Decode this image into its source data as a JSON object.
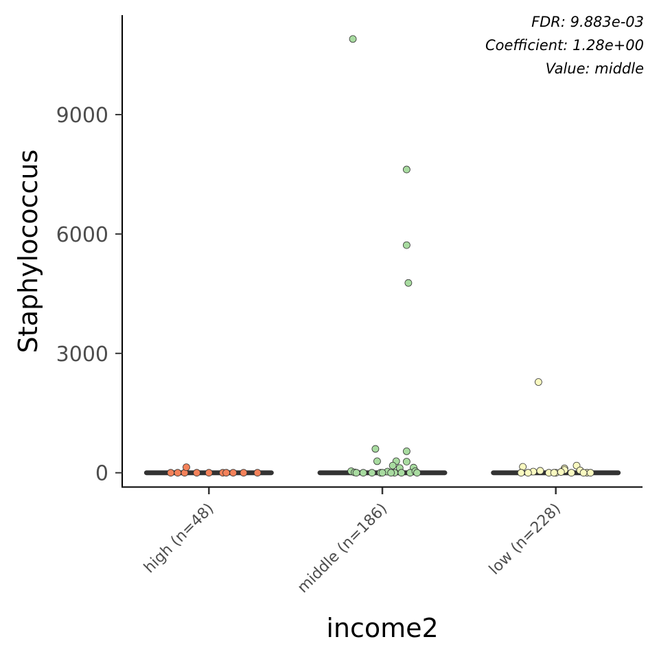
{
  "chart_data": {
    "type": "scatter",
    "xlabel": "income2",
    "ylabel": "Staphylococcus",
    "ylim": [
      -350,
      11500
    ],
    "y_ticks": [
      0,
      3000,
      6000,
      9000
    ],
    "y_tick_labels": [
      "0",
      "3000",
      "6000",
      "9000"
    ],
    "categories": [
      "high (n=48)",
      "middle (n=186)",
      "low (n=228)"
    ],
    "annotations": [
      "FDR: 9.883e-03",
      "Coefficient: 1.28e+00",
      "Value: middle"
    ],
    "legend": "none",
    "grid": false,
    "series": [
      {
        "category": "high (n=48)",
        "color": "#f4825a",
        "median": 0,
        "points": [
          {
            "x": -0.22,
            "y": 0
          },
          {
            "x": -0.14,
            "y": 0
          },
          {
            "x": -0.07,
            "y": 0
          },
          {
            "x": 0.0,
            "y": 0
          },
          {
            "x": 0.08,
            "y": 0
          },
          {
            "x": 0.14,
            "y": 0
          },
          {
            "x": 0.2,
            "y": 0
          },
          {
            "x": 0.28,
            "y": 0
          },
          {
            "x": -0.18,
            "y": 0
          },
          {
            "x": 0.1,
            "y": 0
          },
          {
            "x": -0.13,
            "y": 140
          }
        ]
      },
      {
        "category": "middle (n=186)",
        "color": "#a8dba0",
        "median": 0,
        "points": [
          {
            "x": -0.17,
            "y": 10900
          },
          {
            "x": 0.14,
            "y": 7620
          },
          {
            "x": 0.14,
            "y": 5720
          },
          {
            "x": 0.15,
            "y": 4770
          },
          {
            "x": -0.04,
            "y": 600
          },
          {
            "x": 0.14,
            "y": 540
          },
          {
            "x": -0.03,
            "y": 290
          },
          {
            "x": 0.08,
            "y": 290
          },
          {
            "x": 0.14,
            "y": 280
          },
          {
            "x": 0.06,
            "y": 180
          },
          {
            "x": 0.18,
            "y": 130
          },
          {
            "x": 0.1,
            "y": 120
          },
          {
            "x": -0.18,
            "y": 40
          },
          {
            "x": -0.16,
            "y": 10
          },
          {
            "x": -0.11,
            "y": 0
          },
          {
            "x": -0.06,
            "y": 0
          },
          {
            "x": -0.01,
            "y": 0
          },
          {
            "x": 0.03,
            "y": 30
          },
          {
            "x": 0.07,
            "y": 0
          },
          {
            "x": 0.11,
            "y": 0
          },
          {
            "x": 0.16,
            "y": 0
          },
          {
            "x": 0.19,
            "y": 40
          },
          {
            "x": 0.2,
            "y": 0
          },
          {
            "x": -0.15,
            "y": 0
          },
          {
            "x": 0.0,
            "y": 0
          },
          {
            "x": 0.05,
            "y": 0
          }
        ]
      },
      {
        "category": "low (n=228)",
        "color": "#fafac0",
        "median": 0,
        "points": [
          {
            "x": -0.1,
            "y": 2280
          },
          {
            "x": -0.19,
            "y": 150
          },
          {
            "x": 0.12,
            "y": 180
          },
          {
            "x": 0.05,
            "y": 110
          },
          {
            "x": 0.05,
            "y": 70
          },
          {
            "x": -0.13,
            "y": 30
          },
          {
            "x": -0.09,
            "y": 50
          },
          {
            "x": -0.04,
            "y": 0
          },
          {
            "x": 0.0,
            "y": 0
          },
          {
            "x": -0.2,
            "y": 0
          },
          {
            "x": -0.16,
            "y": 0
          },
          {
            "x": 0.09,
            "y": 0
          },
          {
            "x": 0.14,
            "y": 60
          },
          {
            "x": 0.18,
            "y": 0
          },
          {
            "x": 0.2,
            "y": 0
          },
          {
            "x": -0.01,
            "y": 0
          },
          {
            "x": 0.03,
            "y": 20
          },
          {
            "x": 0.16,
            "y": 0
          }
        ]
      }
    ]
  }
}
